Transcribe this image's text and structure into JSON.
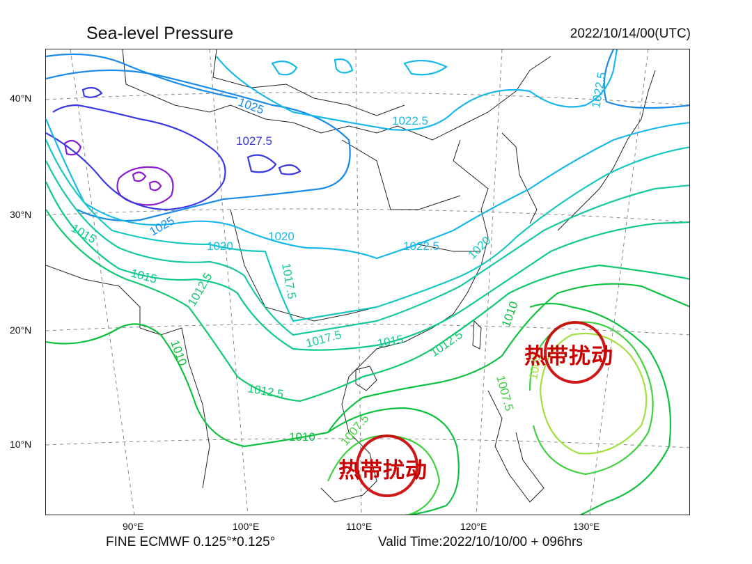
{
  "title": "Sea-level Pressure",
  "valid_datetime": "2022/10/14/00(UTC)",
  "footer": {
    "model": "FINE ECMWF 0.125°*0.125°",
    "valid_time": "Valid Time:2022/10/10/00 + 096hrs"
  },
  "lat_labels": [
    "40°N",
    "30°N",
    "20°N",
    "10°N"
  ],
  "lon_labels": [
    "90°E",
    "100°E",
    "110°E",
    "120°E",
    "130°E"
  ],
  "contour_labels": {
    "c1025_top": "1025",
    "c1022_5_top": "1022.5",
    "c1022_5_ne": "1022.5",
    "c1027_5": "1027.5",
    "c1025_mid": "1025",
    "c1020_w": "1020",
    "c1020_c": "1020",
    "c1022_5_c": "1022.5",
    "c1020_e": "1020",
    "c1015_w": "1015",
    "c1015_w2": "1015",
    "c1012_5_w": "1012.5",
    "c1017_5": "1017.5",
    "c1010_w": "1010",
    "c1017_5_s": "1017.5",
    "c1015_s": "1015",
    "c1012_5_s": "1012.5",
    "c1012_5_sw": "1012.5",
    "c1010_s": "1010",
    "c1007_5_s": "1007.5",
    "c1010_e": "1010",
    "c1007_5_e": "1007.5",
    "c1005_e": "1005"
  },
  "annotations": {
    "disturbance_east": "热带扰动",
    "disturbance_south": "热带扰动"
  },
  "colors": {
    "p1030": "#8a1cd0",
    "p1027_5": "#3a3ae0",
    "p1025": "#1a8ae8",
    "p1022_5": "#18b8e8",
    "p1020": "#18c8c0",
    "p1017_5": "#18c8a0",
    "p1015": "#10c890",
    "p1012_5": "#10c870",
    "p1010": "#10c040",
    "p1007_5": "#40d040",
    "p1005": "#a0e040",
    "annotation": "#c80000"
  }
}
